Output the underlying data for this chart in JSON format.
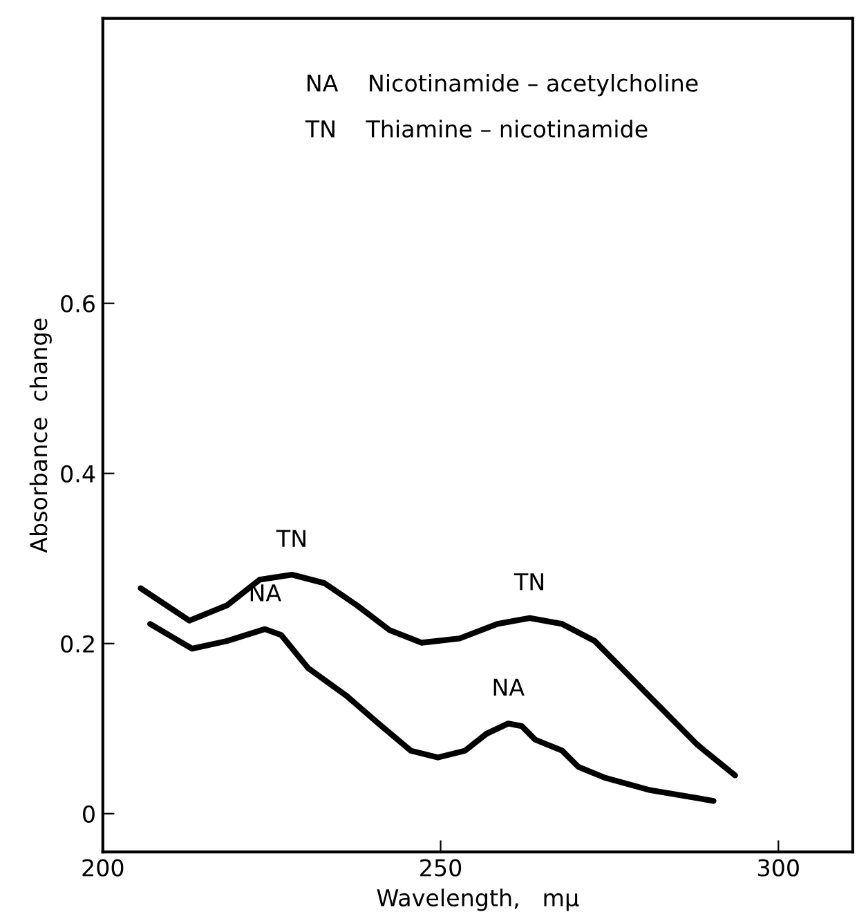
{
  "chart_data": {
    "type": "line",
    "xlabel": "Wavelength,   mμ",
    "ylabel": "Absorbance  change",
    "xlim": [
      200,
      311
    ],
    "ylim": [
      -0.045,
      0.935
    ],
    "xticks": [
      200,
      250,
      300
    ],
    "yticks": [
      0,
      0.2,
      0.4,
      0.6
    ],
    "grid": false,
    "line_style": "solid",
    "marker": "none",
    "series": [
      {
        "color": "#000000",
        "x": [
          205.6,
          212.8,
          218.4,
          223.2,
          228,
          232.8,
          237.6,
          242.4,
          247.2,
          252.8,
          258.4,
          263.2,
          268,
          272.8,
          276.8,
          282.4,
          288,
          293.6
        ],
        "values": [
          0.265,
          0.227,
          0.245,
          0.275,
          0.281,
          0.271,
          0.245,
          0.216,
          0.201,
          0.206,
          0.223,
          0.23,
          0.223,
          0.203,
          0.171,
          0.126,
          0.081,
          0.045
        ]
      },
      {
        "color": "#000000",
        "x": [
          207,
          213.2,
          218.4,
          224,
          226.4,
          230.4,
          236,
          240.8,
          245.6,
          249.6,
          253.6,
          256.8,
          260,
          262,
          264,
          268,
          270.4,
          274.4,
          280.8,
          290.4
        ],
        "values": [
          0.223,
          0.194,
          0.203,
          0.217,
          0.21,
          0.171,
          0.139,
          0.106,
          0.074,
          0.066,
          0.074,
          0.094,
          0.106,
          0.103,
          0.087,
          0.074,
          0.055,
          0.042,
          0.028,
          0.015
        ]
      }
    ],
    "annotations": [
      "NA    Nicotinamide – acetylcholine",
      "TN    Thiamine – nicotinamide",
      {
        "text": "TN",
        "x": 228,
        "y": 0.281
      },
      {
        "text": "TN",
        "x": 263.2,
        "y": 0.23
      },
      {
        "text": "NA",
        "x": 224,
        "y": 0.217
      },
      {
        "text": "NA",
        "x": 260,
        "y": 0.106
      }
    ]
  }
}
